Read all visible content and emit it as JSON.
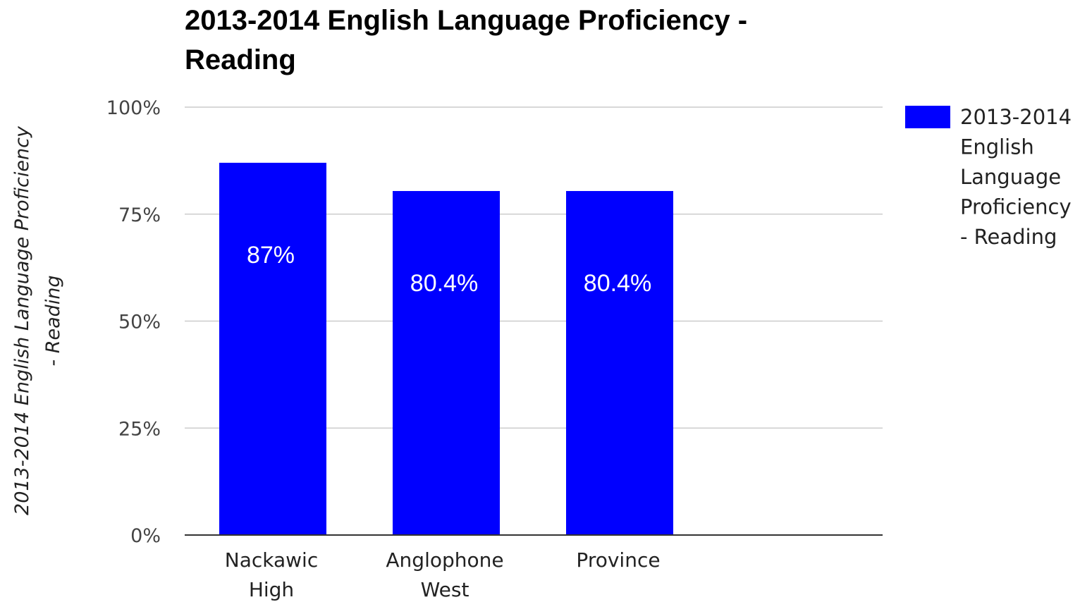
{
  "chart_data": {
    "type": "bar",
    "title_lines": [
      "2013-2014 English Language Proficiency -",
      "Reading"
    ],
    "ylabel_lines": [
      "2013-2014 English Language Proficiency",
      "- Reading"
    ],
    "xlabel": "",
    "categories": [
      [
        "Nackawic",
        "High"
      ],
      [
        "Anglophone",
        "West"
      ],
      [
        "Province"
      ]
    ],
    "series": [
      {
        "name_lines": [
          "2013-2014",
          "English",
          "Language",
          "Proficiency",
          "- Reading"
        ],
        "values": [
          87,
          80.4,
          80.4
        ],
        "data_labels": [
          "87%",
          "80.4%",
          "80.4%"
        ],
        "color": "#0000ff"
      }
    ],
    "ylim": [
      0,
      100
    ],
    "yticks": [
      0,
      25,
      50,
      75,
      100
    ],
    "ytick_labels": [
      "0%",
      "25%",
      "50%",
      "75%",
      "100%"
    ],
    "grid": true,
    "legend_position": "right"
  }
}
